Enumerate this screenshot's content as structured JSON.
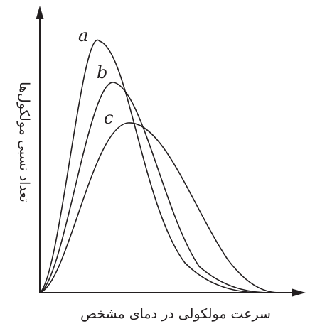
{
  "figure": {
    "xlabel": "سرعت مولکولی در دمای مشخص",
    "ylabel": "تعداد نسبی مولکول‌ها",
    "curves": [
      {
        "label": "a",
        "peak_x": 0.26,
        "peak_y": 1.0,
        "width": 0.1
      },
      {
        "label": "b",
        "peak_x": 0.31,
        "peak_y": 0.83,
        "width": 0.13
      },
      {
        "label": "c",
        "peak_x": 0.4,
        "peak_y": 0.67,
        "width": 0.18
      }
    ]
  }
}
